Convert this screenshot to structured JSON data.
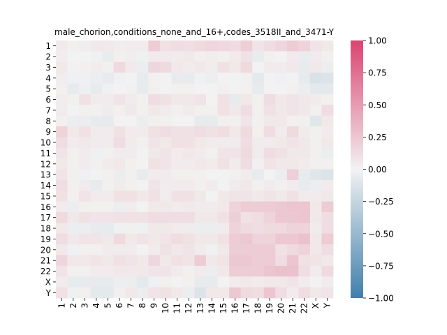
{
  "chart_data": {
    "type": "heatmap",
    "title": "male_chorion,conditions_none_and_16+,codes_3518II_and_3471-Y",
    "xlabel": "",
    "ylabel": "",
    "row_labels": [
      "1",
      "2",
      "3",
      "4",
      "5",
      "6",
      "7",
      "8",
      "9",
      "10",
      "11",
      "12",
      "13",
      "14",
      "15",
      "16",
      "17",
      "18",
      "19",
      "20",
      "21",
      "22",
      "X",
      "Y"
    ],
    "col_labels": [
      "1",
      "2",
      "3",
      "4",
      "5",
      "6",
      "7",
      "8",
      "9",
      "10",
      "11",
      "12",
      "13",
      "14",
      "15",
      "16",
      "17",
      "18",
      "19",
      "20",
      "21",
      "22",
      "X",
      "Y"
    ],
    "values": [
      [
        0.05,
        0.02,
        0.03,
        0.06,
        0.05,
        0.03,
        0.04,
        0.04,
        0.22,
        0.1,
        0.12,
        0.11,
        0.14,
        0.16,
        0.15,
        0.13,
        0.2,
        0.08,
        0.12,
        0.16,
        0.22,
        0.18,
        0.08,
        0.06
      ],
      [
        0.03,
        0.0,
        0.0,
        -0.02,
        -0.05,
        0.02,
        0.03,
        -0.02,
        0.05,
        0.05,
        0.04,
        0.06,
        0.02,
        0.03,
        0.02,
        0.05,
        0.1,
        -0.05,
        0.02,
        0.0,
        0.05,
        -0.05,
        0.05,
        0.02
      ],
      [
        0.06,
        0.01,
        0.02,
        0.03,
        0.02,
        0.14,
        0.05,
        -0.04,
        0.16,
        0.14,
        0.06,
        0.04,
        0.06,
        0.03,
        0.1,
        0.06,
        0.14,
        0.0,
        0.04,
        0.04,
        0.06,
        -0.06,
        0.06,
        -0.04
      ],
      [
        0.03,
        -0.02,
        -0.02,
        -0.04,
        -0.06,
        -0.02,
        0.0,
        -0.06,
        0.02,
        0.0,
        -0.06,
        -0.06,
        -0.02,
        -0.04,
        0.0,
        0.0,
        0.02,
        -0.08,
        0.0,
        -0.02,
        0.0,
        -0.06,
        -0.14,
        -0.12
      ],
      [
        0.02,
        -0.06,
        -0.03,
        -0.06,
        -0.02,
        0.0,
        0.02,
        -0.06,
        0.02,
        0.0,
        0.02,
        0.02,
        0.0,
        0.0,
        0.02,
        0.0,
        0.02,
        -0.06,
        0.0,
        0.0,
        0.02,
        -0.04,
        -0.08,
        -0.08
      ],
      [
        0.03,
        0.02,
        0.1,
        0.04,
        0.04,
        0.08,
        0.04,
        0.02,
        0.12,
        0.1,
        0.06,
        0.06,
        0.08,
        0.0,
        0.1,
        -0.06,
        0.06,
        0.02,
        0.12,
        0.06,
        0.08,
        0.06,
        0.04,
        0.02
      ],
      [
        0.04,
        0.0,
        0.02,
        0.02,
        0.04,
        0.02,
        0.06,
        0.02,
        0.06,
        0.04,
        0.02,
        0.04,
        0.02,
        0.02,
        0.1,
        0.06,
        0.12,
        0.02,
        0.1,
        0.06,
        0.08,
        0.06,
        0.02,
        0.12
      ],
      [
        0.02,
        -0.04,
        -0.04,
        -0.06,
        -0.06,
        0.0,
        0.0,
        -0.04,
        0.02,
        0.02,
        0.0,
        0.0,
        -0.06,
        -0.06,
        0.02,
        0.02,
        0.08,
        0.02,
        0.06,
        0.06,
        0.02,
        0.02,
        -0.1,
        0.06
      ],
      [
        0.18,
        0.06,
        0.1,
        0.04,
        0.04,
        0.1,
        0.04,
        0.04,
        0.1,
        0.12,
        0.1,
        0.1,
        0.12,
        0.1,
        0.12,
        0.06,
        0.14,
        0.02,
        0.12,
        0.04,
        0.14,
        0.04,
        0.02,
        0.04
      ],
      [
        0.12,
        0.04,
        0.06,
        0.04,
        0.04,
        0.12,
        0.04,
        0.02,
        0.08,
        0.06,
        0.1,
        0.1,
        0.06,
        0.04,
        0.04,
        0.04,
        0.12,
        0.04,
        0.04,
        0.06,
        0.08,
        0.06,
        0.02,
        0.06
      ],
      [
        0.08,
        0.02,
        0.04,
        -0.02,
        0.02,
        0.04,
        0.04,
        0.0,
        0.06,
        0.08,
        0.04,
        0.06,
        0.04,
        0.02,
        0.08,
        0.08,
        0.14,
        0.04,
        0.12,
        0.1,
        0.06,
        0.06,
        0.02,
        -0.04
      ],
      [
        0.06,
        0.02,
        0.04,
        0.02,
        0.04,
        0.06,
        0.02,
        0.0,
        0.1,
        0.08,
        0.04,
        0.04,
        0.06,
        0.04,
        0.1,
        0.04,
        0.12,
        0.02,
        0.08,
        0.06,
        0.06,
        0.04,
        0.02,
        0.02
      ],
      [
        0.08,
        0.02,
        -0.02,
        0.0,
        0.02,
        -0.04,
        0.02,
        -0.06,
        0.04,
        0.04,
        0.02,
        0.02,
        0.02,
        0.0,
        0.0,
        0.02,
        0.04,
        -0.06,
        0.0,
        -0.04,
        0.2,
        -0.06,
        -0.1,
        -0.12
      ],
      [
        0.12,
        0.02,
        0.04,
        -0.06,
        0.02,
        0.04,
        0.02,
        0.0,
        0.08,
        0.04,
        0.04,
        0.04,
        0.02,
        0.04,
        0.0,
        0.04,
        0.06,
        0.02,
        0.04,
        0.02,
        0.04,
        -0.06,
        -0.04,
        0.04
      ],
      [
        0.1,
        0.02,
        0.08,
        0.04,
        0.04,
        0.1,
        0.1,
        0.06,
        0.1,
        0.04,
        0.1,
        0.1,
        0.06,
        0.0,
        0.06,
        0.08,
        0.08,
        0.06,
        0.08,
        0.06,
        0.1,
        0.04,
        0.04,
        0.06
      ],
      [
        0.04,
        -0.04,
        0.02,
        0.02,
        0.02,
        -0.04,
        0.04,
        0.0,
        0.06,
        0.06,
        0.04,
        0.06,
        0.04,
        0.04,
        0.06,
        0.18,
        0.22,
        0.22,
        0.22,
        0.24,
        0.26,
        0.26,
        0.06,
        0.22
      ],
      [
        0.14,
        0.06,
        0.1,
        0.08,
        0.08,
        0.1,
        0.1,
        0.1,
        0.12,
        0.12,
        0.12,
        0.12,
        0.06,
        0.06,
        0.1,
        0.2,
        0.1,
        0.12,
        0.18,
        0.24,
        0.24,
        0.26,
        0.06,
        0.12
      ],
      [
        0.06,
        -0.04,
        -0.04,
        -0.06,
        -0.06,
        -0.02,
        0.02,
        -0.02,
        0.06,
        0.06,
        0.04,
        0.04,
        -0.04,
        -0.04,
        0.04,
        0.18,
        0.14,
        0.12,
        0.14,
        0.14,
        0.18,
        0.18,
        0.04,
        0.12
      ],
      [
        0.12,
        0.06,
        0.08,
        0.08,
        0.06,
        0.14,
        0.06,
        0.08,
        0.06,
        0.08,
        0.12,
        0.1,
        0.06,
        0.06,
        0.1,
        0.22,
        0.24,
        0.18,
        0.18,
        0.24,
        0.24,
        0.28,
        0.06,
        0.22
      ],
      [
        0.06,
        -0.02,
        0.02,
        0.02,
        0.04,
        0.04,
        0.04,
        0.0,
        0.04,
        0.1,
        0.06,
        0.08,
        0.04,
        -0.02,
        0.06,
        0.22,
        0.22,
        0.22,
        0.22,
        0.1,
        0.14,
        0.18,
        0.06,
        0.12
      ],
      [
        0.16,
        0.06,
        0.06,
        0.08,
        0.06,
        0.1,
        0.08,
        0.06,
        0.16,
        0.06,
        0.1,
        0.08,
        0.22,
        0.06,
        0.08,
        0.24,
        0.24,
        0.22,
        0.22,
        0.12,
        0.26,
        0.1,
        0.08,
        0.06
      ],
      [
        0.08,
        0.02,
        0.02,
        0.04,
        0.04,
        0.06,
        0.06,
        0.06,
        0.08,
        0.08,
        0.04,
        0.02,
        0.04,
        -0.04,
        0.06,
        0.22,
        0.22,
        0.22,
        0.26,
        0.28,
        0.28,
        0.12,
        0.04,
        0.14
      ],
      [
        0.04,
        -0.06,
        -0.06,
        -0.06,
        -0.06,
        -0.04,
        -0.04,
        -0.08,
        -0.02,
        0.02,
        0.0,
        0.02,
        -0.06,
        -0.06,
        0.0,
        0.04,
        0.06,
        0.04,
        0.06,
        0.06,
        0.08,
        0.04,
        0.0,
        0.04
      ],
      [
        0.1,
        -0.02,
        0.02,
        -0.08,
        -0.08,
        0.02,
        0.06,
        -0.04,
        0.08,
        0.1,
        0.06,
        -0.04,
        -0.12,
        0.06,
        0.06,
        0.24,
        0.14,
        0.12,
        0.26,
        0.12,
        0.04,
        0.12,
        0.06,
        0.08
      ]
    ],
    "vmin": -1.0,
    "vmax": 1.0,
    "colorbar": {
      "ticks": [
        1.0,
        0.75,
        0.5,
        0.25,
        0.0,
        -0.25,
        -0.5,
        -0.75,
        -1.0
      ],
      "tick_labels": [
        "1.00",
        "0.75",
        "0.50",
        "0.25",
        "0.00",
        "−0.25",
        "−0.50",
        "−0.75",
        "−1.00"
      ]
    },
    "colors": {
      "negative": "#3f7fab",
      "center": "#f2f2f2",
      "positive": "#db4472"
    }
  }
}
